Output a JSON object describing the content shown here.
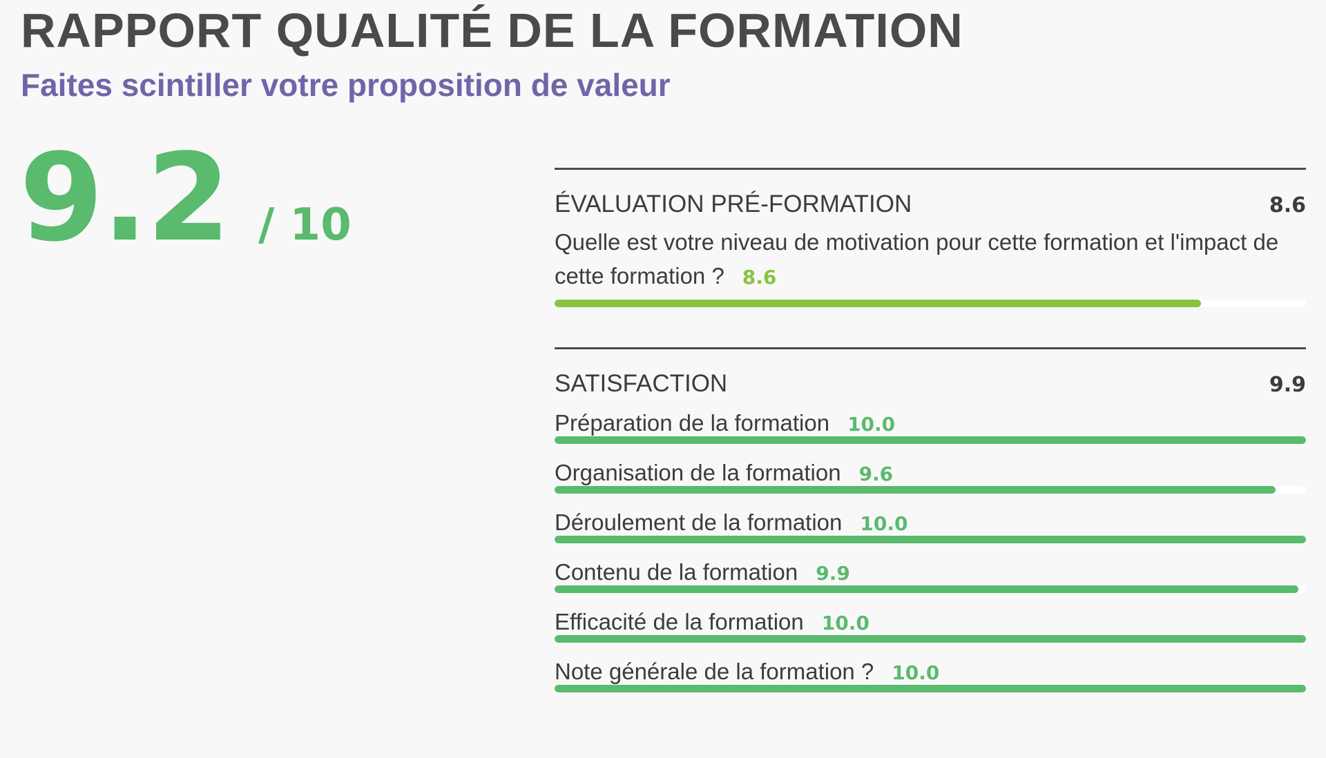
{
  "header": {
    "title": "RAPPORT QUALITÉ DE LA FORMATION",
    "subtitle": "Faites scintiller votre proposition de valeur"
  },
  "overall": {
    "score": "9.2",
    "out_of": "/ 10",
    "score_value": 9.2,
    "max": 10
  },
  "colors": {
    "title": "#4a4a4a",
    "subtitle_purple": "#7264a8",
    "score_green": "#5aba6e",
    "lime_green": "#88c440",
    "rule": "#4a4a4a",
    "track": "#ffffff"
  },
  "sections": [
    {
      "name": "ÉVALUATION PRÉ-FORMATION",
      "score": "8.6",
      "color": "#88c440",
      "items": [
        {
          "label": "Quelle est votre niveau de motivation pour cette formation et l'impact de cette formation ?",
          "value": "8.6",
          "fraction": 0.86
        }
      ]
    },
    {
      "name": "SATISFACTION",
      "score": "9.9",
      "color": "#5aba6e",
      "items": [
        {
          "label": "Préparation de la formation",
          "value": "10.0",
          "fraction": 1.0
        },
        {
          "label": "Organisation de la formation",
          "value": "9.6",
          "fraction": 0.96
        },
        {
          "label": "Déroulement de la formation",
          "value": "10.0",
          "fraction": 1.0
        },
        {
          "label": "Contenu de la formation",
          "value": "9.9",
          "fraction": 0.99
        },
        {
          "label": "Efficacité de la formation",
          "value": "10.0",
          "fraction": 1.0
        },
        {
          "label": "Note générale de la formation ?",
          "value": "10.0",
          "fraction": 1.0
        }
      ]
    }
  ]
}
